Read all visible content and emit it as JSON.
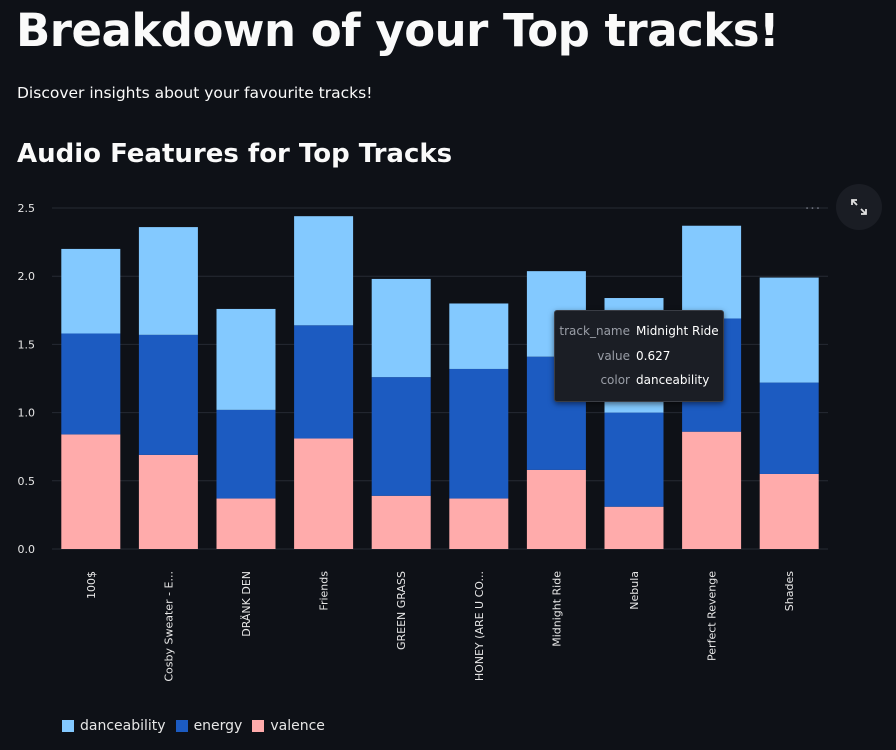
{
  "page": {
    "title": "Breakdown of your Top tracks!",
    "subtitle": "Discover insights about your favourite tracks!"
  },
  "section": {
    "title": "Audio Features for Top Tracks"
  },
  "toolbar": {
    "menu_label": "...",
    "fullscreen_icon": "expand-icon"
  },
  "colors": {
    "danceability": "#83c9ff",
    "energy": "#1c5bc1",
    "valence": "#ffabab",
    "grid": "#262a33",
    "axis_text": "#e6e6e6"
  },
  "chart_data": {
    "type": "bar",
    "stacked": true,
    "categories": [
      "100$",
      "Cosby Sweater - E...",
      "DRÄNK DEN",
      "Friends",
      "GREEN GRASS",
      "HONEY (ARE U CO...",
      "Midnight Ride",
      "Nebula",
      "Perfect Revenge",
      "Shades"
    ],
    "series": [
      {
        "name": "valence",
        "values": [
          0.84,
          0.69,
          0.37,
          0.81,
          0.39,
          0.37,
          0.58,
          0.31,
          0.86,
          0.55
        ]
      },
      {
        "name": "energy",
        "values": [
          0.74,
          0.88,
          0.65,
          0.83,
          0.87,
          0.95,
          0.83,
          0.69,
          0.83,
          0.67
        ]
      },
      {
        "name": "danceability",
        "values": [
          0.62,
          0.79,
          0.74,
          0.8,
          0.72,
          0.48,
          0.627,
          0.84,
          0.68,
          0.77
        ]
      }
    ],
    "yticks": [
      "0.0",
      "0.5",
      "1.0",
      "1.5",
      "2.0",
      "2.5"
    ],
    "ylim": [
      0,
      2.5
    ],
    "grid": true,
    "legend": [
      {
        "name": "danceability",
        "color": "#83c9ff"
      },
      {
        "name": "energy",
        "color": "#1c5bc1"
      },
      {
        "name": "valence",
        "color": "#ffabab"
      }
    ],
    "legend_position": "bottom-left"
  },
  "tooltip": {
    "rows": [
      {
        "key": "track_name",
        "value": "Midnight Ride"
      },
      {
        "key": "value",
        "value": "0.627"
      },
      {
        "key": "color",
        "value": "danceability"
      }
    ]
  }
}
